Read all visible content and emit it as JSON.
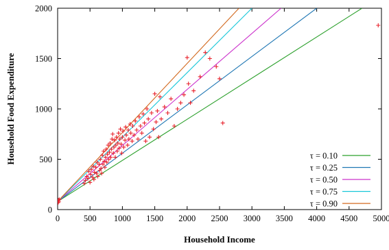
{
  "chart_data": {
    "type": "scatter",
    "title": "",
    "xlabel": "Household Income",
    "ylabel": "Household Food Expenditure",
    "xlim": [
      0,
      5000
    ],
    "ylim": [
      0,
      2000
    ],
    "xticks": [
      0,
      500,
      1000,
      1500,
      2000,
      2500,
      3000,
      3500,
      4000,
      4500,
      5000
    ],
    "yticks": [
      0,
      500,
      1000,
      1500,
      2000
    ],
    "grid": false,
    "legend_position": "bottom-right",
    "marker": "+",
    "marker_color": "#e8202a",
    "series": [
      {
        "name": "τ = 0.10",
        "color": "#2ca02c",
        "line": [
          [
            0,
            80
          ],
          [
            4700,
            2000
          ]
        ]
      },
      {
        "name": "τ = 0.25",
        "color": "#1f77b4",
        "line": [
          [
            0,
            80
          ],
          [
            4000,
            2000
          ]
        ]
      },
      {
        "name": "τ = 0.50",
        "color": "#cc33cc",
        "line": [
          [
            0,
            80
          ],
          [
            3450,
            2000
          ]
        ]
      },
      {
        "name": "τ = 0.75",
        "color": "#17c7d9",
        "line": [
          [
            0,
            80
          ],
          [
            3000,
            2000
          ]
        ]
      },
      {
        "name": "τ = 0.90",
        "color": "#d2691e",
        "line": [
          [
            0,
            80
          ],
          [
            2800,
            2000
          ]
        ]
      }
    ],
    "points": [
      [
        8,
        70
      ],
      [
        12,
        95
      ],
      [
        18,
        80
      ],
      [
        25,
        100
      ],
      [
        410,
        260
      ],
      [
        430,
        290
      ],
      [
        450,
        330
      ],
      [
        470,
        310
      ],
      [
        480,
        380
      ],
      [
        500,
        270
      ],
      [
        510,
        350
      ],
      [
        520,
        400
      ],
      [
        540,
        320
      ],
      [
        550,
        430
      ],
      [
        560,
        300
      ],
      [
        570,
        370
      ],
      [
        590,
        420
      ],
      [
        600,
        360
      ],
      [
        610,
        470
      ],
      [
        620,
        330
      ],
      [
        640,
        450
      ],
      [
        650,
        390
      ],
      [
        660,
        500
      ],
      [
        670,
        410
      ],
      [
        680,
        360
      ],
      [
        690,
        540
      ],
      [
        700,
        450
      ],
      [
        710,
        580
      ],
      [
        720,
        480
      ],
      [
        730,
        420
      ],
      [
        740,
        520
      ],
      [
        750,
        600
      ],
      [
        760,
        470
      ],
      [
        770,
        550
      ],
      [
        780,
        640
      ],
      [
        790,
        500
      ],
      [
        800,
        570
      ],
      [
        810,
        660
      ],
      [
        820,
        520
      ],
      [
        830,
        600
      ],
      [
        840,
        700
      ],
      [
        850,
        750
      ],
      [
        860,
        560
      ],
      [
        870,
        620
      ],
      [
        880,
        690
      ],
      [
        890,
        520
      ],
      [
        900,
        640
      ],
      [
        910,
        720
      ],
      [
        920,
        580
      ],
      [
        930,
        660
      ],
      [
        940,
        760
      ],
      [
        950,
        610
      ],
      [
        960,
        700
      ],
      [
        970,
        800
      ],
      [
        980,
        650
      ],
      [
        990,
        560
      ],
      [
        1000,
        720
      ],
      [
        1010,
        780
      ],
      [
        1020,
        620
      ],
      [
        1040,
        690
      ],
      [
        1050,
        820
      ],
      [
        1060,
        740
      ],
      [
        1080,
        640
      ],
      [
        1090,
        790
      ],
      [
        1100,
        700
      ],
      [
        1120,
        850
      ],
      [
        1130,
        760
      ],
      [
        1150,
        680
      ],
      [
        1160,
        830
      ],
      [
        1180,
        740
      ],
      [
        1200,
        880
      ],
      [
        1220,
        790
      ],
      [
        1240,
        700
      ],
      [
        1260,
        920
      ],
      [
        1280,
        830
      ],
      [
        1300,
        760
      ],
      [
        1320,
        950
      ],
      [
        1340,
        860
      ],
      [
        1360,
        680
      ],
      [
        1380,
        1000
      ],
      [
        1400,
        900
      ],
      [
        1420,
        720
      ],
      [
        1450,
        960
      ],
      [
        1480,
        800
      ],
      [
        1500,
        1150
      ],
      [
        1520,
        870
      ],
      [
        1540,
        980
      ],
      [
        1560,
        720
      ],
      [
        1580,
        1120
      ],
      [
        1600,
        900
      ],
      [
        1650,
        1020
      ],
      [
        1700,
        960
      ],
      [
        1750,
        1100
      ],
      [
        1800,
        830
      ],
      [
        1850,
        1000
      ],
      [
        1900,
        1060
      ],
      [
        1950,
        1140
      ],
      [
        2000,
        1510
      ],
      [
        2020,
        1250
      ],
      [
        2050,
        1060
      ],
      [
        2100,
        1180
      ],
      [
        2200,
        1320
      ],
      [
        2280,
        1560
      ],
      [
        2350,
        1500
      ],
      [
        2450,
        1420
      ],
      [
        2500,
        1300
      ],
      [
        2550,
        860
      ],
      [
        4950,
        1830
      ]
    ]
  }
}
